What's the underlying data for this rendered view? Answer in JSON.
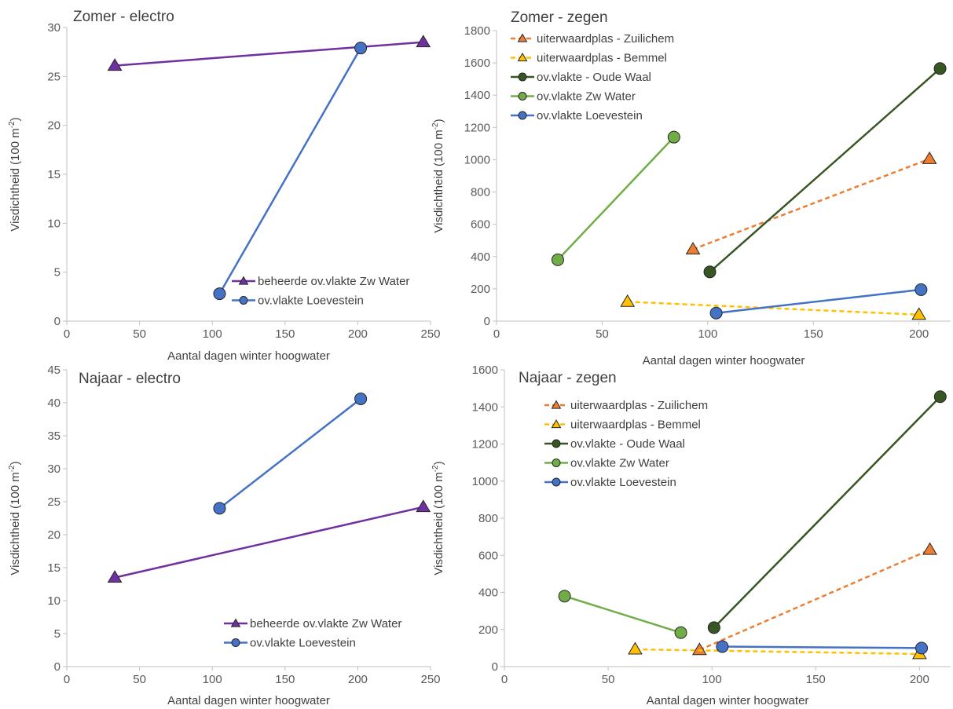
{
  "chart_data": [
    {
      "type": "line",
      "title": "Zomer - electro",
      "xlabel": "Aantal dagen winter hoogwater",
      "ylabel": "Visdichtheid",
      "ylabel_unit": "(100 m",
      "ylabel_sup": "-2",
      "ylabel_close": ")",
      "xlim": [
        0,
        250
      ],
      "xticks": [
        0,
        50,
        100,
        150,
        200,
        250
      ],
      "ylim": [
        0,
        30
      ],
      "yticks": [
        0,
        5,
        10,
        15,
        20,
        25,
        30
      ],
      "legend_position": "bottom-right",
      "series": [
        {
          "name": "beheerde ov.vlakte Zw Water",
          "color": "#7030a0",
          "marker": "triangle",
          "dash": false,
          "x": [
            33,
            245
          ],
          "y": [
            26.1,
            28.5
          ]
        },
        {
          "name": "ov.vlakte Loevestein",
          "color": "#4472c4",
          "marker": "circle",
          "dash": false,
          "x": [
            105,
            202
          ],
          "y": [
            2.8,
            27.9
          ]
        }
      ]
    },
    {
      "type": "line",
      "title": "Zomer - zegen",
      "xlabel": "Aantal dagen winter hoogwater",
      "ylabel": "Visdichtheid",
      "ylabel_unit": "(100 m",
      "ylabel_sup": "-2",
      "ylabel_close": ")",
      "xlim": [
        0,
        215
      ],
      "xticks": [
        0,
        50,
        100,
        150,
        200
      ],
      "ylim": [
        0,
        1800
      ],
      "yticks": [
        0,
        200,
        400,
        600,
        800,
        1000,
        1200,
        1400,
        1600,
        1800
      ],
      "legend_position": "top-left",
      "series": [
        {
          "name": "uiterwaardplas - Zuilichem",
          "color": "#ed7d31",
          "marker": "triangle",
          "dash": true,
          "x": [
            93,
            205
          ],
          "y": [
            445,
            1005
          ]
        },
        {
          "name": "uiterwaardplas - Bemmel",
          "color": "#ffc000",
          "marker": "triangle",
          "dash": true,
          "x": [
            62,
            200
          ],
          "y": [
            120,
            40
          ]
        },
        {
          "name": "ov.vlakte - Oude Waal",
          "color": "#375623",
          "marker": "circle",
          "dash": false,
          "x": [
            101,
            210
          ],
          "y": [
            305,
            1565
          ]
        },
        {
          "name": "ov.vlakte Zw Water",
          "color": "#70ad47",
          "marker": "circle",
          "dash": false,
          "x": [
            29,
            84
          ],
          "y": [
            380,
            1140
          ]
        },
        {
          "name": "ov.vlakte Loevestein",
          "color": "#4472c4",
          "marker": "circle",
          "dash": false,
          "x": [
            104,
            201
          ],
          "y": [
            50,
            195
          ]
        }
      ]
    },
    {
      "type": "line",
      "title": "Najaar - electro",
      "xlabel": "Aantal dagen winter hoogwater",
      "ylabel": "Visdichtheid",
      "ylabel_unit": "(100 m",
      "ylabel_sup": "-2",
      "ylabel_close": ")",
      "xlim": [
        0,
        250
      ],
      "xticks": [
        0,
        50,
        100,
        150,
        200,
        250
      ],
      "ylim": [
        0,
        45
      ],
      "yticks": [
        0,
        5,
        10,
        15,
        20,
        25,
        30,
        35,
        40,
        45
      ],
      "legend_position": "bottom-right",
      "series": [
        {
          "name": "beheerde ov.vlakte Zw Water",
          "color": "#7030a0",
          "marker": "triangle",
          "dash": false,
          "x": [
            33,
            245
          ],
          "y": [
            13.5,
            24.2
          ]
        },
        {
          "name": "ov.vlakte Loevestein",
          "color": "#4472c4",
          "marker": "circle",
          "dash": false,
          "x": [
            105,
            202
          ],
          "y": [
            24.0,
            40.6
          ]
        }
      ]
    },
    {
      "type": "line",
      "title": "Najaar - zegen",
      "xlabel": "Aantal dagen winter hoogwater",
      "ylabel": "Visdichtheid",
      "ylabel_unit": "(100 m",
      "ylabel_sup": "-2",
      "ylabel_close": ")",
      "xlim": [
        0,
        215
      ],
      "xticks": [
        0,
        50,
        100,
        150,
        200
      ],
      "ylim": [
        0,
        1600
      ],
      "yticks": [
        0,
        200,
        400,
        600,
        800,
        1000,
        1200,
        1400,
        1600
      ],
      "legend_position": "top-left",
      "series": [
        {
          "name": "uiterwaardplas - Zuilichem",
          "color": "#ed7d31",
          "marker": "triangle",
          "dash": true,
          "x": [
            94,
            205
          ],
          "y": [
            90,
            630
          ]
        },
        {
          "name": "uiterwaardplas - Bemmel",
          "color": "#ffc000",
          "marker": "triangle",
          "dash": true,
          "x": [
            63,
            200
          ],
          "y": [
            93,
            68
          ]
        },
        {
          "name": "ov.vlakte - Oude Waal",
          "color": "#375623",
          "marker": "circle",
          "dash": false,
          "x": [
            101,
            210
          ],
          "y": [
            210,
            1455
          ]
        },
        {
          "name": "ov.vlakte Zw Water",
          "color": "#70ad47",
          "marker": "circle",
          "dash": false,
          "x": [
            29,
            85
          ],
          "y": [
            380,
            183
          ]
        },
        {
          "name": "ov.vlakte Loevestein",
          "color": "#4472c4",
          "marker": "circle",
          "dash": false,
          "x": [
            105,
            201
          ],
          "y": [
            108,
            100
          ]
        }
      ]
    }
  ]
}
